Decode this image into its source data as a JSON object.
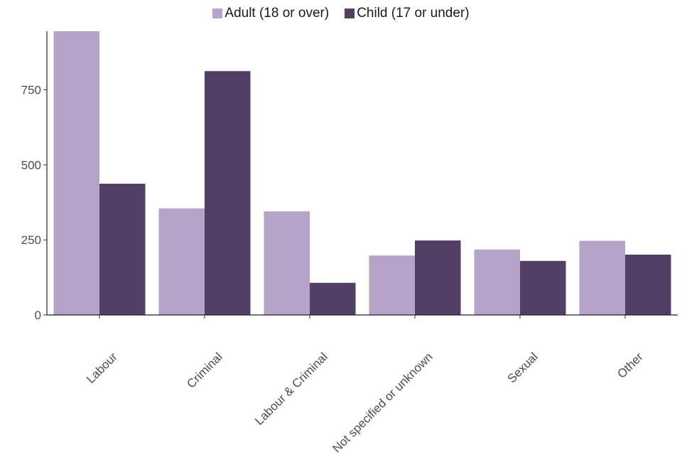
{
  "chart_data": {
    "type": "bar",
    "categories": [
      "Labour",
      "Criminal",
      "Labour & Criminal",
      "Not specified or unknown",
      "Sexual",
      "Other"
    ],
    "series": [
      {
        "name": "Adult (18 or over)",
        "values": [
          945,
          355,
          345,
          198,
          218,
          247
        ],
        "color": "#b5a4c8"
      },
      {
        "name": "Child (17 or under)",
        "values": [
          437,
          812,
          107,
          248,
          180,
          201
        ],
        "color": "#523f65"
      }
    ],
    "title": "",
    "xlabel": "",
    "ylabel": "",
    "ylim": [
      0,
      945
    ],
    "yticks": [
      "0",
      "250",
      "500",
      "750"
    ],
    "grid": false,
    "legend_position": "top-center"
  }
}
